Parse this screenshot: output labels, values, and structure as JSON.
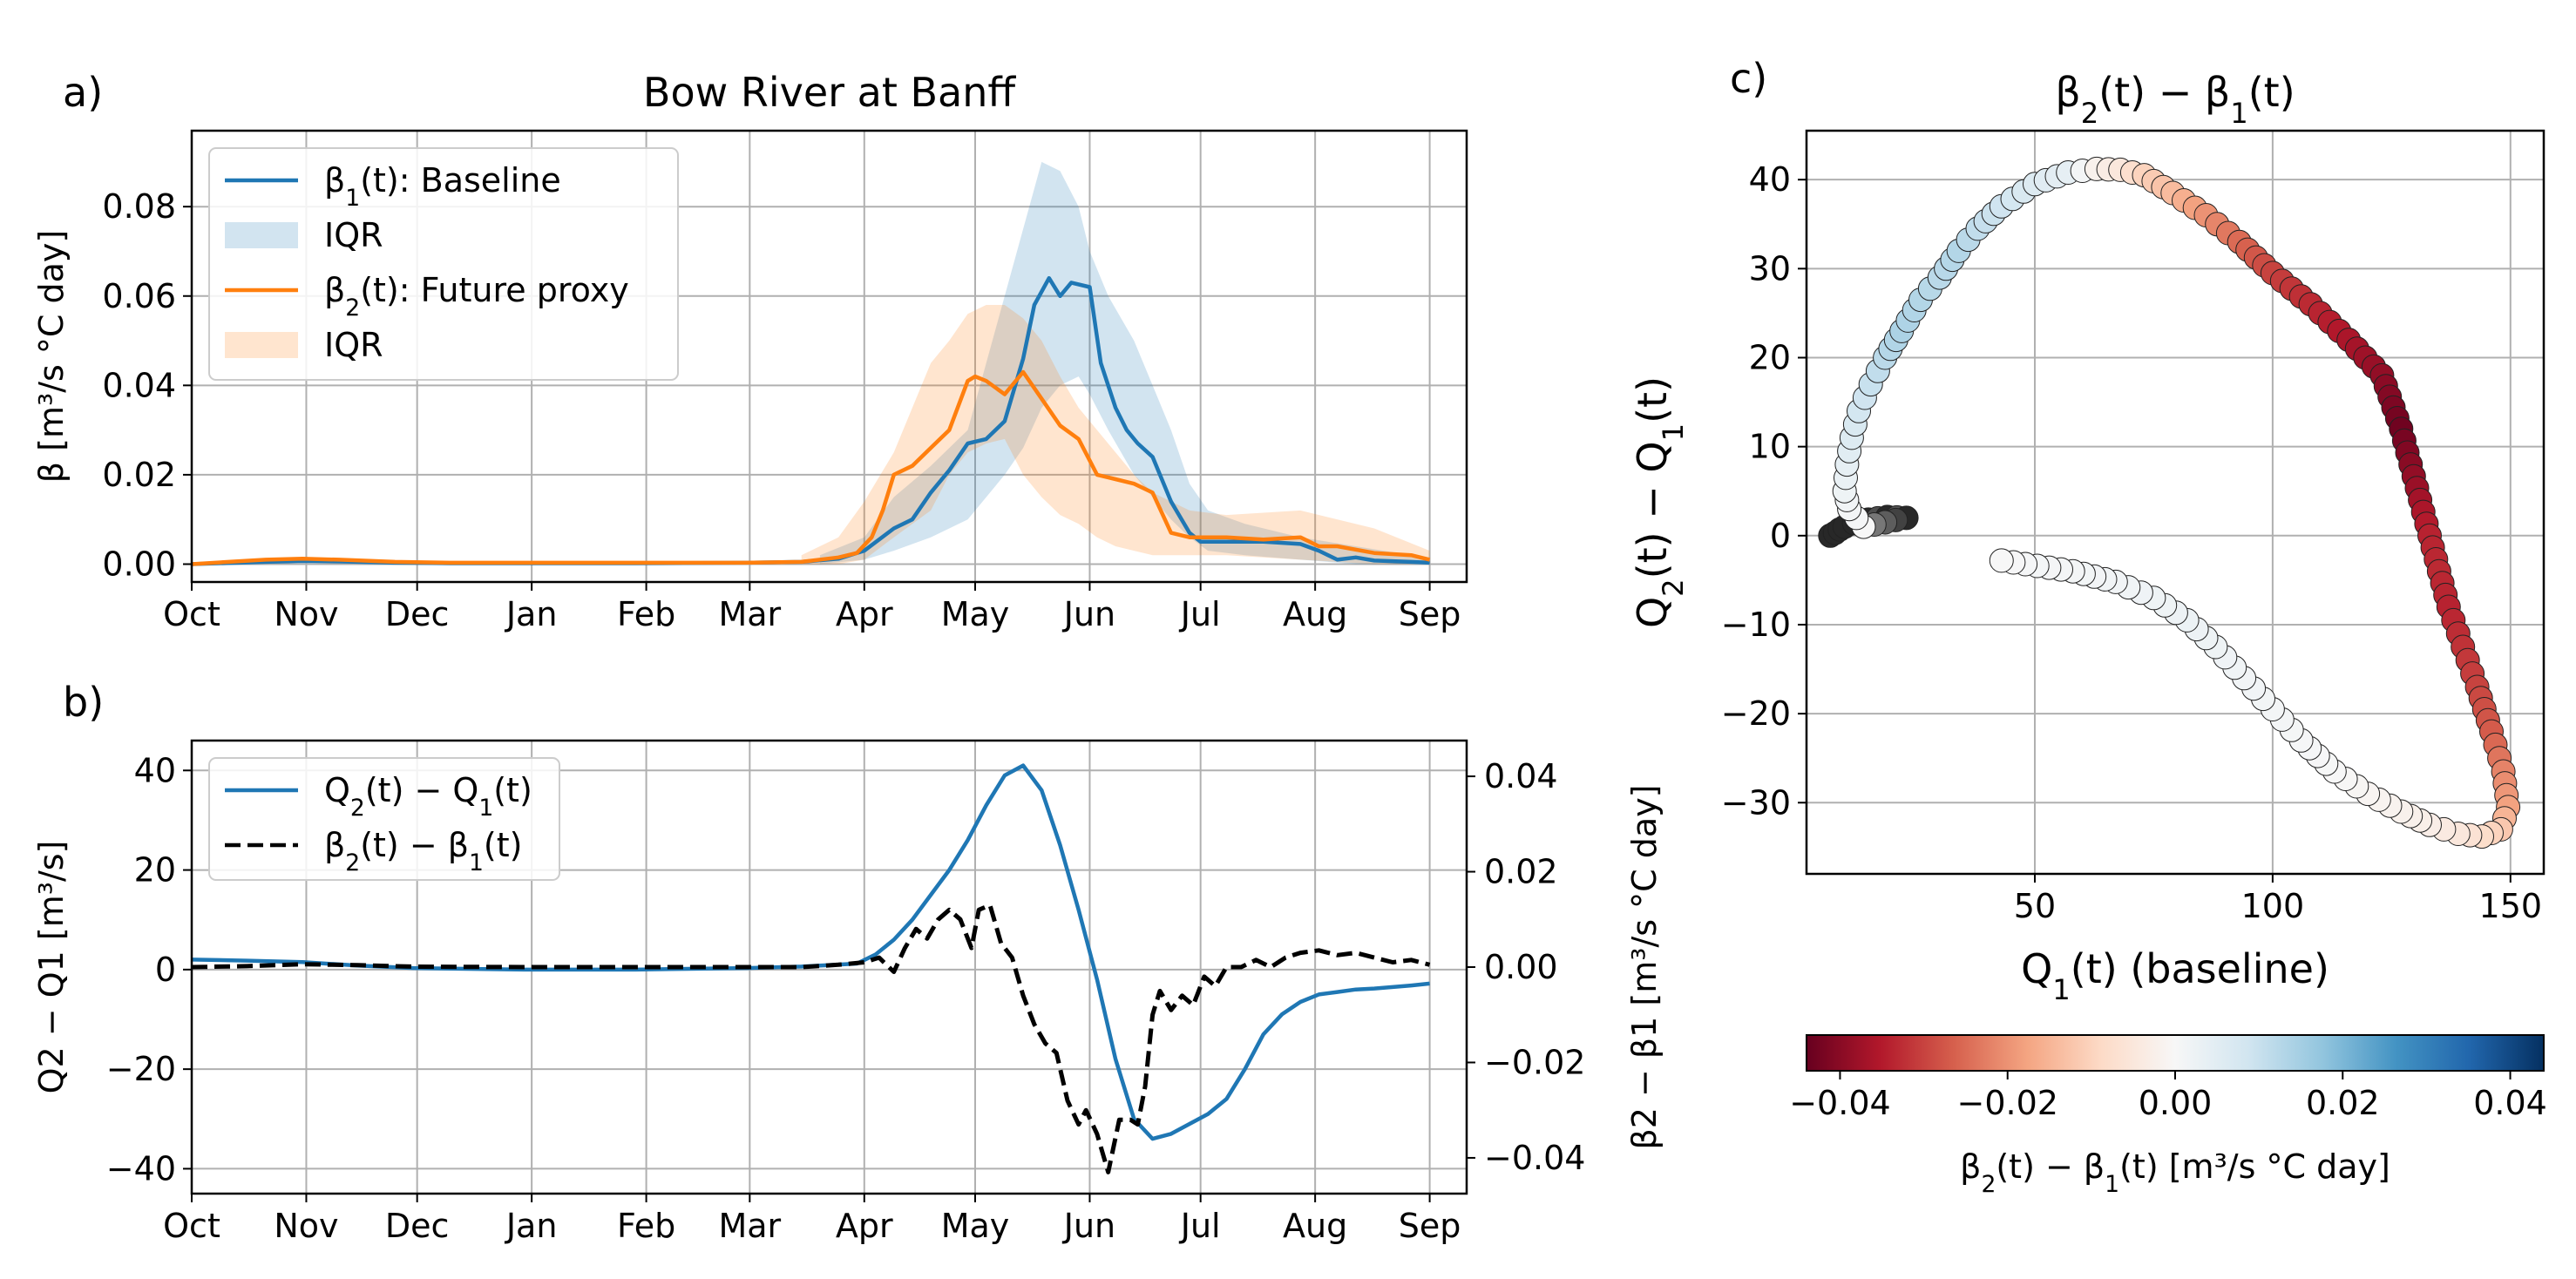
{
  "figure": {
    "panel_labels": [
      "a)",
      "b)",
      "c)"
    ]
  },
  "chart_data": [
    {
      "id": "a",
      "type": "line",
      "title": "Bow River at Banff",
      "xlabel": "",
      "ylabel": "β [m³/s °C day]",
      "xlim": [
        0,
        345
      ],
      "ylim": [
        -0.004,
        0.097
      ],
      "grid": true,
      "legend_position": "top-left",
      "xticks": [
        0,
        31,
        61,
        92,
        123,
        151,
        182,
        212,
        243,
        273,
        304,
        335
      ],
      "xtick_labels": [
        "Oct",
        "Nov",
        "Dec",
        "Jan",
        "Feb",
        "Mar",
        "Apr",
        "May",
        "Jun",
        "Jul",
        "Aug",
        "Sep"
      ],
      "yticks": [
        0.0,
        0.02,
        0.04,
        0.06,
        0.08
      ],
      "ytick_labels": [
        "0.00",
        "0.02",
        "0.04",
        "0.06",
        "0.08"
      ],
      "series": [
        {
          "name": "β1(t): Baseline",
          "label_parts": [
            "β",
            "1",
            "(t): Baseline"
          ],
          "color": "#1f77b4",
          "x": [
            0,
            20,
            30,
            40,
            55,
            70,
            90,
            120,
            150,
            165,
            175,
            182,
            190,
            195,
            200,
            205,
            210,
            215,
            220,
            225,
            228,
            232,
            235,
            238,
            243,
            246,
            250,
            253,
            256,
            260,
            265,
            270,
            273,
            280,
            290,
            300,
            305,
            310,
            315,
            320,
            330,
            335
          ],
          "values": [
            0.0,
            0.0005,
            0.0007,
            0.0006,
            0.0003,
            0.0002,
            0.0002,
            0.0002,
            0.0003,
            0.0005,
            0.0012,
            0.003,
            0.008,
            0.01,
            0.016,
            0.021,
            0.027,
            0.028,
            0.032,
            0.046,
            0.058,
            0.064,
            0.06,
            0.063,
            0.062,
            0.045,
            0.035,
            0.03,
            0.027,
            0.024,
            0.014,
            0.007,
            0.005,
            0.005,
            0.005,
            0.0045,
            0.003,
            0.001,
            0.0015,
            0.0008,
            0.0005,
            0.0003
          ]
        },
        {
          "name": "β2(t): Future proxy",
          "label_parts": [
            "β",
            "2",
            "(t): Future proxy"
          ],
          "color": "#ff7f0e",
          "x": [
            0,
            10,
            20,
            30,
            40,
            55,
            70,
            90,
            120,
            150,
            165,
            175,
            180,
            184,
            187,
            190,
            195,
            200,
            205,
            210,
            212,
            215,
            220,
            225,
            230,
            235,
            240,
            245,
            250,
            255,
            260,
            265,
            270,
            280,
            290,
            300,
            305,
            310,
            320,
            330,
            335
          ],
          "values": [
            0.0,
            0.0005,
            0.001,
            0.0012,
            0.001,
            0.0005,
            0.0003,
            0.0003,
            0.0003,
            0.0003,
            0.0005,
            0.0015,
            0.0025,
            0.006,
            0.012,
            0.02,
            0.022,
            0.026,
            0.03,
            0.041,
            0.042,
            0.041,
            0.038,
            0.043,
            0.037,
            0.031,
            0.028,
            0.02,
            0.019,
            0.018,
            0.016,
            0.007,
            0.006,
            0.006,
            0.0055,
            0.006,
            0.004,
            0.004,
            0.0025,
            0.002,
            0.001
          ]
        }
      ],
      "bands": [
        {
          "name": "IQR",
          "of_series": "β1(t): Baseline",
          "color": "#1f77b4",
          "opacity": 0.2,
          "x": [
            170,
            182,
            190,
            200,
            210,
            215,
            220,
            225,
            230,
            235,
            240,
            243,
            248,
            255,
            260,
            265,
            270,
            275,
            285,
            300,
            315,
            330,
            335
          ],
          "lower": [
            0.0,
            0.001,
            0.003,
            0.006,
            0.01,
            0.015,
            0.02,
            0.026,
            0.035,
            0.04,
            0.042,
            0.038,
            0.03,
            0.02,
            0.015,
            0.01,
            0.006,
            0.003,
            0.002,
            0.001,
            0.0,
            0.0,
            0.0
          ],
          "upper": [
            0.002,
            0.006,
            0.015,
            0.022,
            0.03,
            0.045,
            0.06,
            0.075,
            0.09,
            0.088,
            0.08,
            0.07,
            0.06,
            0.05,
            0.04,
            0.03,
            0.018,
            0.012,
            0.009,
            0.006,
            0.004,
            0.002,
            0.0015
          ]
        },
        {
          "name": "IQR",
          "of_series": "β2(t): Future proxy",
          "color": "#ff7f0e",
          "opacity": 0.2,
          "x": [
            165,
            175,
            182,
            190,
            200,
            205,
            210,
            215,
            220,
            225,
            230,
            235,
            240,
            245,
            250,
            255,
            260,
            270,
            280,
            300,
            320,
            335
          ],
          "lower": [
            0.0,
            0.0,
            0.001,
            0.006,
            0.012,
            0.02,
            0.025,
            0.027,
            0.028,
            0.02,
            0.015,
            0.011,
            0.009,
            0.006,
            0.004,
            0.003,
            0.002,
            0.002,
            0.002,
            0.001,
            0.0,
            0.0
          ],
          "upper": [
            0.002,
            0.006,
            0.014,
            0.025,
            0.045,
            0.05,
            0.056,
            0.058,
            0.058,
            0.055,
            0.05,
            0.042,
            0.035,
            0.03,
            0.025,
            0.02,
            0.016,
            0.012,
            0.011,
            0.012,
            0.008,
            0.003
          ]
        }
      ]
    },
    {
      "id": "b",
      "type": "line",
      "title": "",
      "xlabel": "",
      "ylabel_left": "Q2 − Q1 [m³/s]",
      "ylabel_right": "β2 − β1 [m³/s °C day]",
      "xlim": [
        0,
        345
      ],
      "ylim_left": [
        -45,
        46
      ],
      "ylim_right": [
        -0.0475,
        0.0475
      ],
      "grid": true,
      "legend_position": "top-left",
      "xticks": [
        0,
        31,
        61,
        92,
        123,
        151,
        182,
        212,
        243,
        273,
        304,
        335
      ],
      "xtick_labels": [
        "Oct",
        "Nov",
        "Dec",
        "Jan",
        "Feb",
        "Mar",
        "Apr",
        "May",
        "Jun",
        "Jul",
        "Aug",
        "Sep"
      ],
      "yticks_left": [
        -40,
        -20,
        0,
        20,
        40
      ],
      "ytick_labels_left": [
        "−40",
        "−20",
        "0",
        "20",
        "40"
      ],
      "yticks_right": [
        -0.04,
        -0.02,
        0.0,
        0.02,
        0.04
      ],
      "ytick_labels_right": [
        "−0.04",
        "−0.02",
        "0.00",
        "0.02",
        "0.04"
      ],
      "series": [
        {
          "name": "Q2(t) − Q1(t)",
          "label_parts": [
            "Q",
            "2",
            "(t) − Q",
            "1",
            "(t)"
          ],
          "axis": "left",
          "color": "#1f77b4",
          "style": "solid",
          "x": [
            0,
            15,
            30,
            45,
            60,
            90,
            120,
            150,
            165,
            180,
            185,
            190,
            195,
            200,
            205,
            210,
            215,
            220,
            225,
            230,
            235,
            240,
            245,
            250,
            255,
            260,
            265,
            270,
            275,
            280,
            285,
            290,
            295,
            300,
            305,
            310,
            315,
            320,
            325,
            330,
            335
          ],
          "values": [
            2,
            1.8,
            1.5,
            0.8,
            0.3,
            0,
            0,
            0.3,
            0.6,
            1.2,
            3,
            6,
            10,
            15,
            20,
            26,
            33,
            39,
            41,
            36,
            25,
            12,
            -2,
            -18,
            -30,
            -34,
            -33,
            -31,
            -29,
            -26,
            -20,
            -13,
            -9,
            -6.5,
            -5,
            -4.5,
            -4,
            -3.8,
            -3.5,
            -3.2,
            -2.8
          ]
        },
        {
          "name": "β2(t) − β1(t)",
          "label_parts": [
            "β",
            "2",
            "(t) − β",
            "1",
            "(t)"
          ],
          "axis": "right",
          "color": "#000000",
          "style": "dashed",
          "x": [
            0,
            15,
            30,
            45,
            60,
            90,
            120,
            150,
            165,
            175,
            182,
            186,
            190,
            193,
            196,
            199,
            202,
            205,
            208,
            211,
            213,
            216,
            219,
            222,
            225,
            228,
            231,
            234,
            237,
            240,
            242,
            245,
            248,
            251,
            254,
            256,
            258,
            260,
            262,
            265,
            268,
            271,
            274,
            277,
            280,
            284,
            288,
            292,
            296,
            300,
            305,
            310,
            315,
            320,
            325,
            330,
            335
          ],
          "values": [
            0.0,
            0.0002,
            0.0006,
            0.0004,
            0.0001,
            0.0,
            0.0,
            0.0,
            0.0,
            0.0005,
            0.001,
            0.002,
            -0.001,
            0.004,
            0.008,
            0.006,
            0.01,
            0.012,
            0.01,
            0.004,
            0.012,
            0.013,
            0.005,
            0.002,
            -0.006,
            -0.012,
            -0.016,
            -0.018,
            -0.028,
            -0.033,
            -0.03,
            -0.035,
            -0.043,
            -0.032,
            -0.032,
            -0.033,
            -0.025,
            -0.01,
            -0.005,
            -0.009,
            -0.006,
            -0.008,
            -0.002,
            -0.004,
            0.0,
            0.0,
            0.0015,
            0.0,
            0.002,
            0.003,
            0.0035,
            0.0025,
            0.003,
            0.002,
            0.001,
            0.0015,
            0.0005
          ]
        }
      ]
    },
    {
      "id": "c",
      "type": "scatter",
      "title": "β2(t) − β1(t)",
      "title_parts": [
        "β",
        "2",
        "(t) − β",
        "1",
        "(t)"
      ],
      "xlabel": "Q1(t) (baseline)",
      "xlabel_parts": [
        "Q",
        "1",
        "(t) (baseline)"
      ],
      "ylabel": "Q2(t) − Q1(t)",
      "ylabel_parts": [
        "Q",
        "2",
        "(t) − Q",
        "1",
        "(t)"
      ],
      "xlim": [
        2,
        157
      ],
      "ylim": [
        -38,
        45.5
      ],
      "grid": true,
      "xticks": [
        50,
        100,
        150
      ],
      "xtick_labels": [
        "50",
        "100",
        "150"
      ],
      "yticks": [
        -30,
        -20,
        -10,
        0,
        10,
        20,
        30,
        40
      ],
      "ytick_labels": [
        "−30",
        "−20",
        "−10",
        "0",
        "10",
        "20",
        "30",
        "40"
      ],
      "color_variable": "β2(t) − β1(t)",
      "color_key": "dark = early season (Oct–Mar, values near 0); otherwise colored by colorbar",
      "path_points_q1": [
        7,
        8,
        9,
        10,
        12,
        15,
        19,
        23,
        14,
        11,
        10,
        10.5,
        11.5,
        13,
        15.5,
        18.5,
        22,
        26,
        30,
        34,
        38,
        43,
        50,
        57,
        63,
        68,
        73,
        79,
        86,
        93,
        100,
        108,
        116,
        123,
        127,
        129,
        131,
        133,
        135,
        137,
        140,
        143,
        146,
        148.5,
        149.5,
        148,
        144,
        139,
        133,
        127,
        120,
        113,
        106,
        100,
        94,
        88,
        82,
        75,
        67,
        58,
        48,
        43
      ],
      "path_points_q2": [
        0,
        0.3,
        0.7,
        1,
        1.4,
        1.8,
        2.1,
        2,
        1,
        3,
        5,
        8,
        11,
        14,
        17,
        20,
        23,
        26.5,
        29,
        32,
        34.5,
        37,
        39.5,
        40.8,
        41.2,
        41.1,
        40.5,
        38.5,
        36,
        33,
        29.5,
        26,
        22,
        18,
        12,
        8,
        4,
        0,
        -4,
        -8,
        -12.5,
        -17,
        -22,
        -26.5,
        -30.5,
        -33,
        -33.8,
        -33.5,
        -32.5,
        -31,
        -29,
        -26.5,
        -23,
        -19.5,
        -16,
        -12.5,
        -9.5,
        -7,
        -5.2,
        -4,
        -3.2,
        -2.8
      ],
      "path_points_beta_diff": [
        0,
        0,
        0,
        0,
        0,
        0,
        0,
        0,
        0,
        0.001,
        0.002,
        0.004,
        0.006,
        0.008,
        0.01,
        0.012,
        0.014,
        0.013,
        0.012,
        0.013,
        0.011,
        0.009,
        0.006,
        0.004,
        -0.002,
        -0.005,
        -0.01,
        -0.014,
        -0.02,
        -0.025,
        -0.03,
        -0.033,
        -0.036,
        -0.039,
        -0.043,
        -0.04,
        -0.037,
        -0.034,
        -0.033,
        -0.034,
        -0.032,
        -0.03,
        -0.027,
        -0.022,
        -0.018,
        -0.012,
        -0.008,
        -0.005,
        -0.003,
        -0.002,
        -0.001,
        0.0,
        0.0005,
        0.001,
        0.0015,
        0.002,
        0.0025,
        0.002,
        0.0015,
        0.001,
        0.0005,
        0.0
      ],
      "path_points_early": [
        1,
        1,
        1,
        1,
        1,
        1,
        1,
        1,
        1,
        0,
        0,
        0,
        0,
        0,
        0,
        0,
        0,
        0,
        0,
        0,
        0,
        0,
        0,
        0,
        0,
        0,
        0,
        0,
        0,
        0,
        0,
        0,
        0,
        0,
        0,
        0,
        0,
        0,
        0,
        0,
        0,
        0,
        0,
        0,
        0,
        0,
        0,
        0,
        0,
        0,
        0,
        0,
        0,
        0,
        0,
        0,
        0,
        0,
        0,
        0,
        0,
        0
      ],
      "colorbar": {
        "label": "β2(t) − β1(t) [m³/s °C day]",
        "label_parts": [
          "β",
          "2",
          "(t) − β",
          "1",
          "(t) [m³/s °C day]"
        ],
        "cmap": "RdBu",
        "range": [
          -0.044,
          0.044
        ],
        "ticks": [
          -0.04,
          -0.02,
          0.0,
          0.02,
          0.04
        ],
        "tick_labels": [
          "−0.04",
          "−0.02",
          "0.00",
          "0.02",
          "0.04"
        ],
        "stops": [
          "#67001f",
          "#b2182b",
          "#d6604d",
          "#f4a582",
          "#fddbc7",
          "#f7f7f7",
          "#d1e5f0",
          "#92c5de",
          "#4393c3",
          "#2166ac",
          "#053061"
        ]
      }
    }
  ]
}
